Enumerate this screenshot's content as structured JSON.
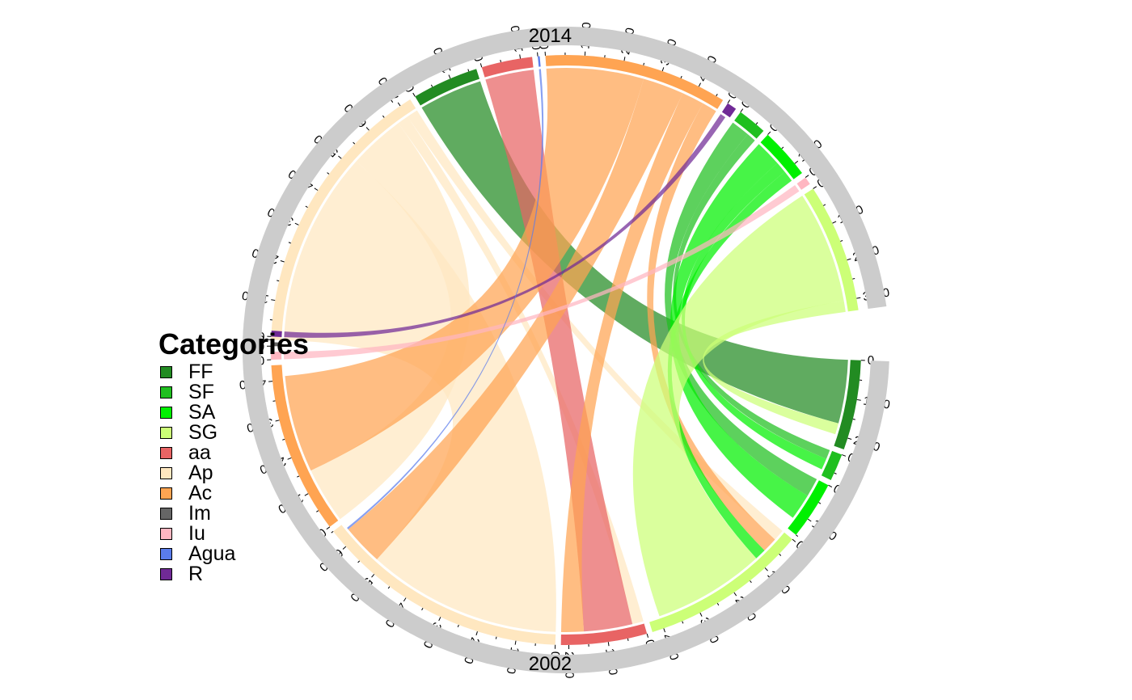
{
  "chart_data": {
    "type": "chord",
    "title": "",
    "groups": [
      {
        "name": "2014",
        "sectors": [
          {
            "category": "Ap",
            "total": 7300
          },
          {
            "category": "FF",
            "total": 1700
          },
          {
            "category": "aa",
            "total": 1300
          },
          {
            "category": "Agua",
            "total": 50
          },
          {
            "category": "Ac",
            "total": 4700
          },
          {
            "category": "R",
            "total": 250
          },
          {
            "category": "SF",
            "total": 750
          },
          {
            "category": "SA",
            "total": 1300
          },
          {
            "category": "Iu",
            "total": 200
          },
          {
            "category": "SG",
            "total": 3300
          }
        ]
      },
      {
        "name": "2002",
        "sectors": [
          {
            "category": "FF",
            "total": 2300
          },
          {
            "category": "SF",
            "total": 700
          },
          {
            "category": "SA",
            "total": 1500
          },
          {
            "category": "SG",
            "total": 4300
          },
          {
            "category": "aa",
            "total": 2200
          },
          {
            "category": "Ap",
            "total": 6500
          },
          {
            "category": "Ac",
            "total": 4400
          },
          {
            "category": "Iu",
            "total": 200
          },
          {
            "category": "Im",
            "total": 100
          },
          {
            "category": "R",
            "total": 150
          }
        ]
      }
    ],
    "flows": [
      {
        "from": "Ap",
        "to": "Ap",
        "value": 5200
      },
      {
        "from": "Ap",
        "to": "Ac",
        "value": 1500
      },
      {
        "from": "Ap",
        "to": "aa",
        "value": 300
      },
      {
        "from": "Ap",
        "to": "SG",
        "value": 300
      },
      {
        "from": "FF",
        "to": "FF",
        "value": 1700
      },
      {
        "from": "aa",
        "to": "aa",
        "value": 1300
      },
      {
        "from": "Ac",
        "to": "Ac",
        "value": 2600
      },
      {
        "from": "Ac",
        "to": "Ap",
        "value": 1100
      },
      {
        "from": "Ac",
        "to": "aa",
        "value": 600
      },
      {
        "from": "Ac",
        "to": "SG",
        "value": 400
      },
      {
        "from": "SF",
        "to": "SA",
        "value": 500
      },
      {
        "from": "SF",
        "to": "SF",
        "value": 250
      },
      {
        "from": "SA",
        "to": "SA",
        "value": 700
      },
      {
        "from": "SA",
        "to": "SF",
        "value": 300
      },
      {
        "from": "SA",
        "to": "SG",
        "value": 300
      },
      {
        "from": "SG",
        "to": "SG",
        "value": 3000
      },
      {
        "from": "SG",
        "to": "FF",
        "value": 300
      },
      {
        "from": "Iu",
        "to": "Iu",
        "value": 200
      },
      {
        "from": "R",
        "to": "R",
        "value": 150
      },
      {
        "from": "Agua",
        "to": "Ap",
        "value": 50
      },
      {
        "from": "FF",
        "to": "SG",
        "value": 0
      },
      {
        "from": "aa",
        "to": "FF",
        "value": 0
      }
    ],
    "legend": {
      "title": "Categories",
      "position": "left",
      "entries": [
        {
          "label": "FF",
          "color": "#228B22"
        },
        {
          "label": "SF",
          "color": "#1FBF1F"
        },
        {
          "label": "SA",
          "color": "#00F000"
        },
        {
          "label": "SG",
          "color": "#CCFF77"
        },
        {
          "label": "aa",
          "color": "#E86464"
        },
        {
          "label": "Ap",
          "color": "#FFE7C0"
        },
        {
          "label": "Ac",
          "color": "#FFA452"
        },
        {
          "label": "Im",
          "color": "#666666"
        },
        {
          "label": "Iu",
          "color": "#FFB6C1"
        },
        {
          "label": "Agua",
          "color": "#5A7CEB"
        },
        {
          "label": "R",
          "color": "#702A96"
        }
      ]
    },
    "tick_step": 1000
  }
}
